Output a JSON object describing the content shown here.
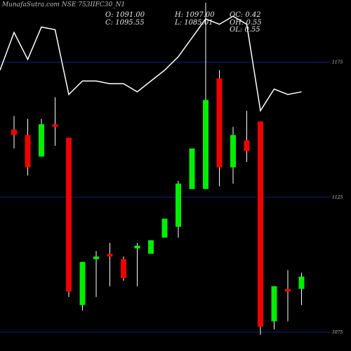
{
  "title": "MunafaSutra.com NSE 753IIFC30_N1",
  "ohlc": {
    "o_label": "O:",
    "o": "1091.00",
    "h_label": "H:",
    "h": "1097.00",
    "oc_label": "OC:",
    "oc": "0.42",
    "c_label": "C:",
    "c": "1095.55",
    "l_label": "L:",
    "l": "1085.01",
    "oh_label": "OH:",
    "oh": "0.55",
    "ol_label": "OL:",
    "ol": "0.55"
  },
  "colors": {
    "up": "#00ee00",
    "down": "#ee0000",
    "grid": "#1a1a80",
    "line": "#ffffff",
    "bg": "#000000"
  },
  "chart_data": {
    "type": "candlestick",
    "ylim": [
      1068,
      1198
    ],
    "yticks": [
      {
        "value": 1175,
        "label": "1175"
      },
      {
        "value": 1125,
        "label": "1125"
      },
      {
        "value": 1075,
        "label": "1075"
      }
    ],
    "candles": [
      {
        "open": 1150,
        "close": 1148,
        "high": 1155,
        "low": 1143
      },
      {
        "open": 1148,
        "close": 1136,
        "high": 1154,
        "low": 1133
      },
      {
        "open": 1140,
        "close": 1152,
        "high": 1154,
        "low": 1140
      },
      {
        "open": 1152,
        "close": 1151,
        "high": 1162,
        "low": 1144
      },
      {
        "open": 1147,
        "close": 1090,
        "high": 1147,
        "low": 1088
      },
      {
        "open": 1085,
        "close": 1101,
        "high": 1101,
        "low": 1083
      },
      {
        "open": 1102,
        "close": 1103,
        "high": 1105,
        "low": 1088
      },
      {
        "open": 1104,
        "close": 1103,
        "high": 1108,
        "low": 1092
      },
      {
        "open": 1102,
        "close": 1095,
        "high": 1103,
        "low": 1094
      },
      {
        "open": 1106,
        "close": 1107,
        "high": 1108,
        "low": 1092
      },
      {
        "open": 1104,
        "close": 1109,
        "high": 1109,
        "low": 1104
      },
      {
        "open": 1110,
        "close": 1117,
        "high": 1117,
        "low": 1110
      },
      {
        "open": 1114,
        "close": 1130,
        "high": 1131,
        "low": 1110
      },
      {
        "open": 1128,
        "close": 1143,
        "high": 1143,
        "low": 1128
      },
      {
        "open": 1128,
        "close": 1161,
        "high": 1197,
        "low": 1128
      },
      {
        "open": 1169,
        "close": 1136,
        "high": 1172,
        "low": 1129
      },
      {
        "open": 1136,
        "close": 1148,
        "high": 1151,
        "low": 1130
      },
      {
        "open": 1146,
        "close": 1142,
        "high": 1157,
        "low": 1138
      },
      {
        "open": 1153,
        "close": 1077,
        "high": 1153,
        "low": 1074
      },
      {
        "open": 1079,
        "close": 1092,
        "high": 1092,
        "low": 1076
      },
      {
        "open": 1091,
        "close": 1090,
        "high": 1098,
        "low": 1079
      },
      {
        "open": 1091,
        "close": 1095.55,
        "high": 1097,
        "low": 1085.01
      }
    ],
    "line_series": [
      null,
      1186,
      1176,
      1188,
      1187,
      1163,
      1168,
      1168,
      1167,
      1167,
      1164,
      1168,
      1172,
      1177,
      1184,
      1191,
      1189,
      1192,
      1189,
      1157,
      1165,
      1163,
      1164
    ]
  }
}
